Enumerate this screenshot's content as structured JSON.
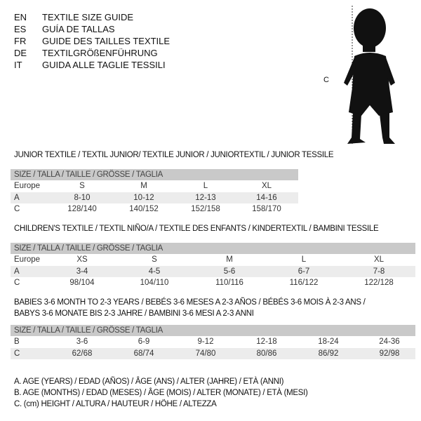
{
  "languages": [
    {
      "code": "EN",
      "title": "TEXTILE SIZE GUIDE"
    },
    {
      "code": "ES",
      "title": "GUÍA DE TALLAS"
    },
    {
      "code": "FR",
      "title": "GUIDE DES TAILLES TEXTILE"
    },
    {
      "code": "DE",
      "title": "TEXTILGRÖßENFÜHRUNG"
    },
    {
      "code": "IT",
      "title": "GUIDA ALLE TAGLIE TESSILI"
    }
  ],
  "figure": {
    "measure_label": "C"
  },
  "junior": {
    "heading": "JUNIOR TEXTILE / TEXTIL JUNIOR/ TEXTILE JUNIOR / JUNIORTEXTIL / JUNIOR TESSILE",
    "header": "SIZE / TALLA / TAILLE / GRÖSSE / TAGLIA",
    "rows": [
      {
        "label": "Europe",
        "cells": [
          "S",
          "M",
          "L",
          "XL"
        ]
      },
      {
        "label": "A",
        "cells": [
          "8-10",
          "10-12",
          "12-13",
          "14-16"
        ]
      },
      {
        "label": "C",
        "cells": [
          "128/140",
          "140/152",
          "152/158",
          "158/170"
        ]
      }
    ]
  },
  "children": {
    "heading": "CHILDREN'S TEXTILE / TEXTIL NIÑO/A / TEXTILE DES ENFANTS / KINDERTEXTIL / BAMBINI TESSILE",
    "header": "SIZE / TALLA / TAILLE / GRÖSSE / TAGLIA",
    "rows": [
      {
        "label": "Europe",
        "cells": [
          "XS",
          "S",
          "M",
          "L",
          "XL"
        ]
      },
      {
        "label": "A",
        "cells": [
          "3-4",
          "4-5",
          "5-6",
          "6-7",
          "7-8"
        ]
      },
      {
        "label": "C",
        "cells": [
          "98/104",
          "104/110",
          "110/116",
          "116/122",
          "122/128"
        ]
      }
    ]
  },
  "babies": {
    "heading_line1": "BABIES 3-6 MONTH TO 2-3 YEARS / BEBÉS 3-6 MESES A 2-3 AÑOS / BÉBÉS 3-6 MOIS À 2-3 ANS /",
    "heading_line2": "BABYS 3-6 MONATE BIS 2-3 JAHRE / BAMBINI 3-6 MESI A 2-3 ANNI",
    "header": "SIZE / TALLA / TAILLE / GRÖSSE / TAGLIA",
    "rows": [
      {
        "label": "B",
        "cells": [
          "3-6",
          "6-9",
          "9-12",
          "12-18",
          "18-24",
          "24-36"
        ]
      },
      {
        "label": "C",
        "cells": [
          "62/68",
          "68/74",
          "74/80",
          "80/86",
          "86/92",
          "92/98"
        ]
      }
    ]
  },
  "legend": [
    "A. AGE (YEARS) / EDAD (AÑOS) / ÂGE (ANS) / ALTER (JAHRE) / ETÀ (ANNI)",
    "B. AGE (MONTHS) / EDAD (MESES) / ÂGE (MOIS) / ALTER (MONATE) / ETÀ (MESI)",
    "C. (cm) HEIGHT / ALTURA / HAUTEUR / HÖHE / ALTEZZA"
  ]
}
